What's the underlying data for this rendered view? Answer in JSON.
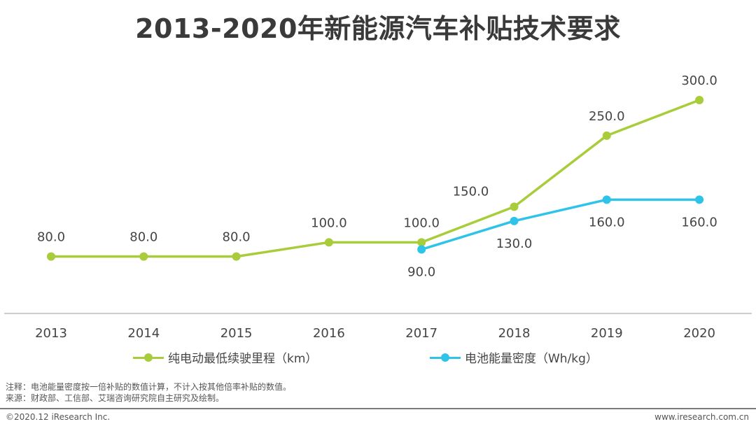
{
  "title": "2013-2020年新能源汽车补贴技术要求",
  "chart_data": {
    "type": "line",
    "title": "2013-2020年新能源汽车补贴技术要求",
    "categories": [
      "2013",
      "2014",
      "2015",
      "2016",
      "2017",
      "2018",
      "2019",
      "2020"
    ],
    "series": [
      {
        "name": "纯电动最低续驶里程（km）",
        "color": "#a8cc3a",
        "values": [
          80.0,
          80.0,
          80.0,
          100.0,
          100.0,
          150.0,
          250.0,
          300.0
        ],
        "labels": [
          "80.0",
          "80.0",
          "80.0",
          "100.0",
          "100.0",
          "150.0",
          "250.0",
          "300.0"
        ]
      },
      {
        "name": "电池能量密度（Wh/kg）",
        "color": "#2ec3e8",
        "values": [
          null,
          null,
          null,
          null,
          90.0,
          130.0,
          160.0,
          160.0
        ],
        "labels": [
          "",
          "",
          "",
          "",
          "90.0",
          "130.0",
          "160.0",
          "160.0"
        ]
      }
    ],
    "ylim": [
      0,
      330
    ],
    "grid": false,
    "legend": "bottom"
  },
  "notes": {
    "note": "注释：电池能量密度按一倍补贴的数值计算，不计入按其他倍率补贴的数值。",
    "source": "来源：财政部、工信部、艾瑞咨询研究院自主研究及绘制。"
  },
  "footer": {
    "copyright": "©2020.12 iResearch Inc.",
    "website": "www.iresearch.com.cn"
  }
}
